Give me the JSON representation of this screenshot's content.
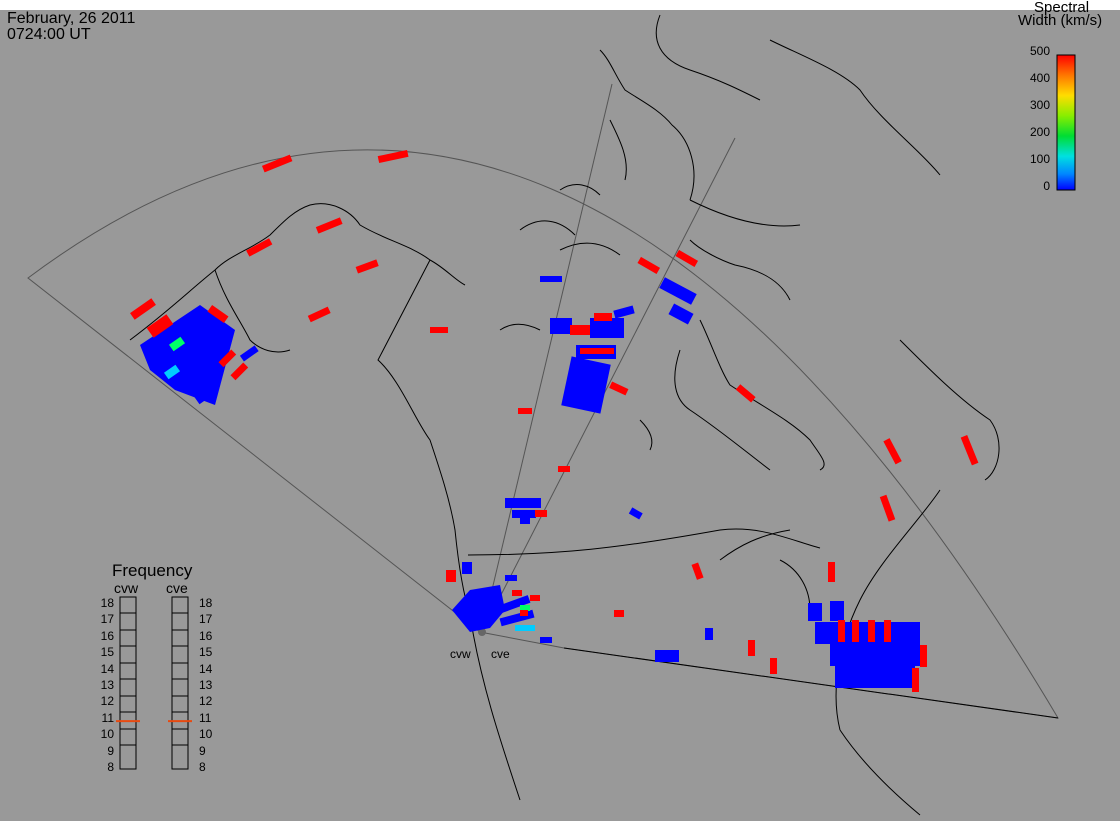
{
  "header": {
    "date": "February, 26 2011",
    "time": "0724:00 UT"
  },
  "colorbar": {
    "title_line1": "Spectral",
    "title_line2": "Width (km/s)",
    "ticks": [
      "500",
      "400",
      "300",
      "200",
      "100",
      "0"
    ]
  },
  "frequency_panel": {
    "title": "Frequency",
    "radars": [
      "cvw",
      "cve"
    ],
    "levels": [
      "18",
      "17",
      "16",
      "15",
      "14",
      "13",
      "12",
      "11",
      "10",
      "9",
      "8"
    ],
    "current_mhz": {
      "cvw": 10.8,
      "cve": 10.8
    }
  },
  "radar_sites": [
    "cvw",
    "cve"
  ],
  "colors": {
    "background": "#999999",
    "low_width": "#0000ff",
    "mid_width": "#00ccff",
    "green_width": "#00ff66",
    "high_width": "#ff0000",
    "frequency_marker": "#e84a10"
  }
}
